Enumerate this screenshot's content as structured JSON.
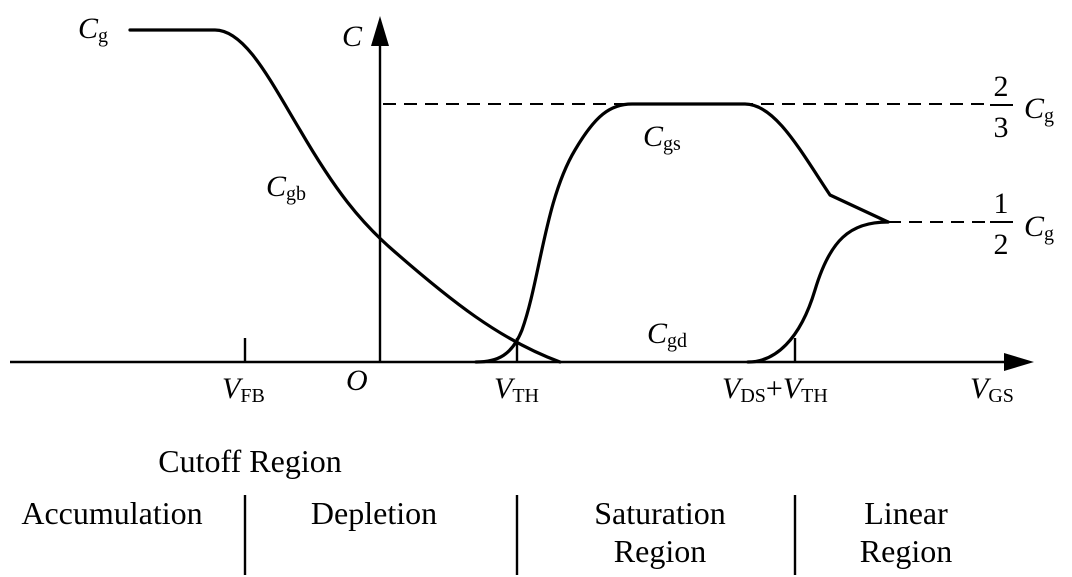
{
  "axes": {
    "y_label": "C",
    "x_label": {
      "main": "V",
      "sub": "GS"
    },
    "origin": "O"
  },
  "ticks": {
    "vfb": {
      "main": "V",
      "sub": "FB"
    },
    "vth": {
      "main": "V",
      "sub": "TH"
    },
    "vds_vth": {
      "main1": "V",
      "sub1": "DS",
      "plus": "+",
      "main2": "V",
      "sub2": "TH"
    }
  },
  "curves": {
    "cg": {
      "main": "C",
      "sub": "g"
    },
    "cgb": {
      "main": "C",
      "sub": "gb"
    },
    "cgs": {
      "main": "C",
      "sub": "gs"
    },
    "cgd": {
      "main": "C",
      "sub": "gd"
    }
  },
  "levels": {
    "two_thirds": {
      "num": "2",
      "den": "3",
      "main": "C",
      "sub": "g"
    },
    "one_half": {
      "num": "1",
      "den": "2",
      "main": "C",
      "sub": "g"
    }
  },
  "regions": {
    "cutoff": "Cutoff Region",
    "accumulation": "Accumulation",
    "depletion": "Depletion",
    "saturation_line1": "Saturation",
    "saturation_line2": "Region",
    "linear_line1": "Linear",
    "linear_line2": "Region"
  }
}
